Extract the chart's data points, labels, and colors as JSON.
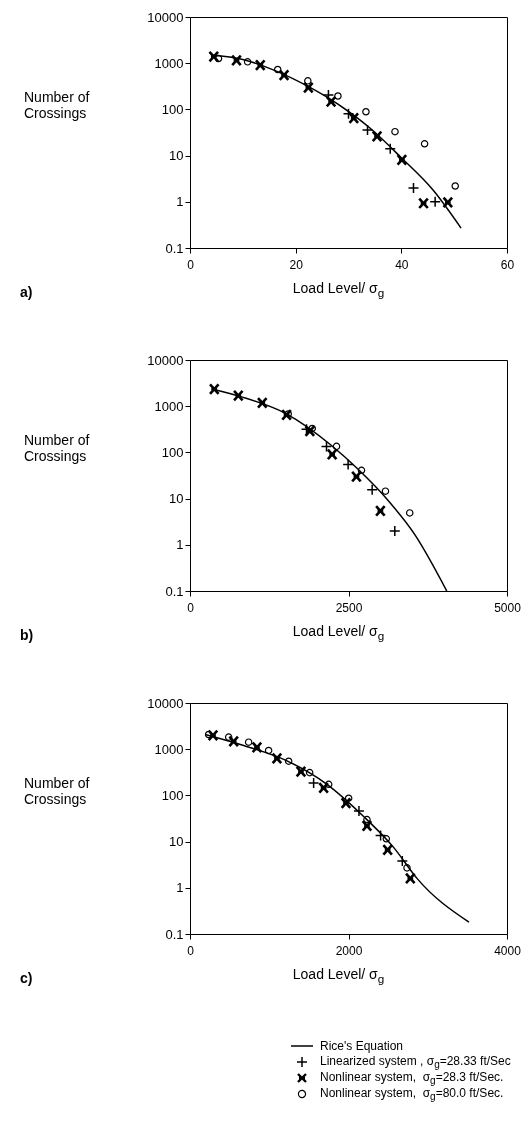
{
  "chart_data": [
    {
      "type": "scatter",
      "xlabel": "Load Level/ σ$_{g}$",
      "ylabel": "Number of Crossings",
      "annotations": [
        "a)"
      ],
      "log": "y",
      "xlim": [
        0,
        60
      ],
      "legend": "bottom right",
      "xticks": [
        0,
        20,
        40,
        60
      ],
      "ylim": [
        0.1,
        10000
      ],
      "yticks": [
        0.1,
        1,
        10,
        100,
        1000,
        10000
      ],
      "series": [
        {
          "name": "Rice's Equation",
          "type": "line",
          "marker": "none",
          "color": "#000000",
          "x": [
            4,
            10,
            16,
            22,
            28,
            34,
            40,
            46,
            51.3
          ],
          "values": [
            1500,
            1200,
            700,
            330,
            130,
            40,
            9,
            1.8,
            0.27
          ]
        },
        {
          "name": "Linearized system , σ$_{g}$=28.33 ft/Sec",
          "color": "#000000",
          "x": [
            26.2,
            30,
            33.6,
            37.9,
            42.3,
            46.4
          ],
          "values": [
            205,
            81,
            36,
            14,
            2,
            1
          ]
        },
        {
          "name": "Nonlinear system,  σ$_{g}$=28.3 ft/Sec.",
          "marker": "cross",
          "color": "#000000",
          "x": [
            4.5,
            8.8,
            13.3,
            17.8,
            22.4,
            26.7,
            31,
            35.4,
            40.1,
            44.2,
            48.8
          ],
          "values": [
            1380,
            1150,
            910,
            550,
            295,
            148,
            65,
            26,
            8.1,
            0.93,
            0.97
          ]
        },
        {
          "name": "Nonlinear system,  σ$_{g}$=80.0 ft/Sec.",
          "marker": "circle",
          "color": "#000000",
          "x": [
            5.4,
            10.9,
            16.6,
            22.3,
            28,
            33.3,
            38.8,
            44.4,
            50.2
          ],
          "values": [
            1260,
            1070,
            730,
            415,
            195,
            89,
            33,
            18,
            2.2
          ]
        }
      ]
    },
    {
      "type": "scatter",
      "xlabel": "Load Level/ σ$_{g}$",
      "ylabel": "Number of Crossings",
      "annotations": [
        "b)"
      ],
      "log": "y",
      "legend": "bottom right",
      "xlim": [
        0,
        5000
      ],
      "xticks": [
        0,
        2500,
        5000
      ],
      "ylim": [
        0.1,
        10000
      ],
      "yticks": [
        0.1,
        1,
        10,
        100,
        1000,
        10000
      ],
      "series": [
        {
          "name": "Rice's Equation",
          "type": "line",
          "marker": "none",
          "color": "#000000",
          "x": [
            341,
            814,
            1497,
            2232,
            2652,
            3125,
            3546,
            4050
          ],
          "values": [
            2350,
            1590,
            710,
            141,
            43,
            9.1,
            1.66,
            0.1
          ]
        },
        {
          "name": "Linearized system , σ$_{g}$=28.33 ft/Sec",
          "color": "#000000",
          "x": [
            1838,
            2153,
            2494,
            2873,
            3230
          ],
          "values": [
            316,
            134,
            55,
            15.5,
            2
          ]
        },
        {
          "name": "Nonlinear system,  σ$_{g}$=28.3 ft/Sec.",
          "marker": "cross",
          "color": "#000000",
          "x": [
            383,
            762,
            1140,
            1523,
            1890,
            2242,
            2625,
            3003
          ],
          "values": [
            2350,
            1700,
            1180,
            650,
            290,
            91,
            30,
            5.4
          ]
        },
        {
          "name": "Nonlinear system,  σ$_{g}$=80.0 ft/Sec.",
          "marker": "circle",
          "color": "#000000",
          "x": [
            1549,
            1928,
            2311,
            2705,
            3083,
            3466
          ],
          "values": [
            680,
            330,
            135,
            41,
            14.5,
            4.9
          ]
        }
      ]
    },
    {
      "type": "scatter",
      "xlabel": "Load Level/ σ$_{g}$",
      "ylabel": "Number of Crossings",
      "annotations": [
        "c)"
      ],
      "log": "y",
      "legend": "bottom right",
      "xlim": [
        0,
        4000
      ],
      "xticks": [
        0,
        2000,
        4000
      ],
      "ylim": [
        0.1,
        10000
      ],
      "yticks": [
        0.1,
        1,
        10,
        100,
        1000,
        10000
      ],
      "series": [
        {
          "name": "Rice's Equation",
          "type": "line",
          "marker": "none",
          "color": "#000000",
          "x": [
            193,
            677,
            1224,
            1728,
            2191,
            2569,
            2864,
            3520
          ],
          "values": [
            2080,
            1200,
            560,
            174,
            35,
            7.5,
            1.6,
            0.18
          ]
        },
        {
          "name": "Linearized system , σ$_{g}$=28.33 ft/Sec",
          "color": "#000000",
          "x": [
            1560,
            2132,
            2405,
            2679
          ],
          "values": [
            186,
            46,
            13.5,
            3.8
          ]
        },
        {
          "name": "Nonlinear system,  σ$_{g}$=28.3 ft/Sec.",
          "marker": "cross",
          "color": "#000000",
          "x": [
            290,
            551,
            845,
            1097,
            1400,
            1686,
            1968,
            2233,
            2494,
            2780
          ],
          "values": [
            2000,
            1480,
            1100,
            630,
            326,
            145,
            68,
            22,
            6.6,
            1.6
          ]
        },
        {
          "name": "Nonlinear system,  σ$_{g}$=80.0 ft/Sec.",
          "marker": "circle",
          "color": "#000000",
          "x": [
            235,
            488,
            740,
            992,
            1245,
            1510,
            1750,
            2002,
            2233,
            2477,
            2738
          ],
          "values": [
            2080,
            1830,
            1420,
            940,
            550,
            311,
            174,
            87,
            30,
            11.5,
            2.7
          ]
        }
      ]
    }
  ]
}
